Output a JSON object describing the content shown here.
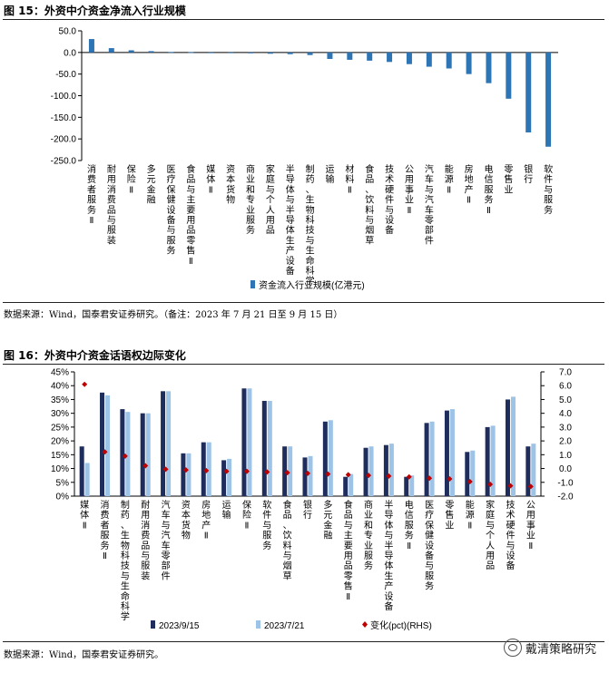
{
  "figure1": {
    "title": "图 15：外资中介资金净流入行业规模",
    "source": "数据来源：Wind，国泰君安证券研究。（备注：2023 年 7 月 21 日至 9 月 15 日）"
  },
  "figure2": {
    "title": "图 16：外资中介资金话语权边际变化",
    "source": "数据来源：Wind，国泰君安证券研究。"
  },
  "watermark": "戴清策略研究",
  "chart_data": [
    {
      "type": "bar",
      "categories": [
        "消费者服务Ⅱ",
        "耐用消费品与服装",
        "保险Ⅱ",
        "多元金融",
        "医疗保健设备与服务",
        "食品与主要用品零售Ⅱ",
        "媒体Ⅱ",
        "资本货物",
        "商业和专业服务",
        "家庭与个人用品",
        "半导体与半导体生产设备",
        "制药、生物科技与生命科学",
        "运输",
        "材料Ⅱ",
        "食品、饮料与烟草",
        "技术硬件与设备",
        "公用事业Ⅱ",
        "汽车与汽车零部件",
        "能源Ⅱ",
        "房地产Ⅱ",
        "电信服务Ⅱ",
        "零售业",
        "银行",
        "软件与服务"
      ],
      "series": [
        {
          "name": "资金流入行业规模(亿港元)",
          "values": [
            31,
            10,
            5,
            3,
            1,
            0.5,
            -1,
            -1.5,
            -2,
            -3,
            -4,
            -6,
            -15,
            -17,
            -19,
            -22,
            -27,
            -33,
            -37,
            -50,
            -71,
            -107,
            -185,
            -218
          ]
        }
      ],
      "ylim": [
        -250,
        50
      ],
      "yticks": [
        "50.0",
        "0.0",
        "-50.0",
        "-100.0",
        "-150.0",
        "-200.0",
        "-250.0"
      ],
      "ytick_values": [
        50,
        0,
        -50,
        -100,
        -150,
        -200,
        -250
      ],
      "colors": {
        "bar": "#2e75b6"
      },
      "legend_position": "bottom"
    },
    {
      "type": "bar",
      "categories": [
        "媒体Ⅱ",
        "消费者服务Ⅱ",
        "制药、生物科技与生命科学",
        "耐用消费品与服装",
        "汽车与汽车零部件",
        "资本货物",
        "房地产Ⅱ",
        "运输",
        "保险Ⅱ",
        "软件与服务",
        "食品、饮料与烟草",
        "银行",
        "多元金融",
        "食品与主要用品零售Ⅱ",
        "商业和专业服务",
        "半导体与半导体生产设备",
        "电信服务Ⅱ",
        "医疗保健设备与服务",
        "零售业",
        "能源Ⅱ",
        "家庭与个人用品",
        "技术硬件与设备",
        "公用事业Ⅱ"
      ],
      "series": [
        {
          "name": "2023/9/15",
          "values": [
            18.0,
            37.5,
            31.5,
            30.0,
            38.0,
            15.5,
            19.5,
            13.0,
            39.0,
            34.5,
            18.0,
            14.0,
            27.0,
            7.0,
            17.5,
            18.5,
            7.0,
            26.5,
            31.0,
            16.0,
            25.0,
            35.0,
            18.0
          ]
        },
        {
          "name": "2023/7/21",
          "values": [
            12.0,
            36.5,
            30.5,
            30.0,
            38.0,
            15.5,
            19.5,
            13.5,
            39.0,
            34.5,
            18.0,
            14.5,
            27.5,
            8.0,
            18.0,
            19.0,
            7.5,
            27.0,
            31.5,
            16.5,
            25.5,
            36.0,
            19.0
          ]
        },
        {
          "name": "变化(pct)(RHS)",
          "axis": "right",
          "values": [
            6.1,
            1.2,
            0.9,
            0.2,
            -0.05,
            -0.1,
            -0.15,
            -0.2,
            -0.2,
            -0.25,
            -0.3,
            -0.35,
            -0.4,
            -0.45,
            -0.5,
            -0.55,
            -0.6,
            -0.7,
            -0.75,
            -0.95,
            -1.15,
            -1.25,
            -1.3
          ]
        }
      ],
      "ylim": [
        0,
        45
      ],
      "yticks": [
        "45%",
        "40%",
        "35%",
        "30%",
        "25%",
        "20%",
        "15%",
        "10%",
        "5%",
        "0%"
      ],
      "ytick_values": [
        45,
        40,
        35,
        30,
        25,
        20,
        15,
        10,
        5,
        0
      ],
      "y2lim": [
        -2,
        7
      ],
      "y2ticks": [
        "7.0",
        "6.0",
        "5.0",
        "4.0",
        "3.0",
        "2.0",
        "1.0",
        "0.0",
        "-1.0",
        "-2.0"
      ],
      "y2tick_values": [
        7,
        6,
        5,
        4,
        3,
        2,
        1,
        0,
        -1,
        -2
      ],
      "colors": {
        "s1": "#1f2d5c",
        "s2": "#9dc3e6",
        "s3": "#c00000"
      },
      "legend_position": "bottom"
    }
  ]
}
